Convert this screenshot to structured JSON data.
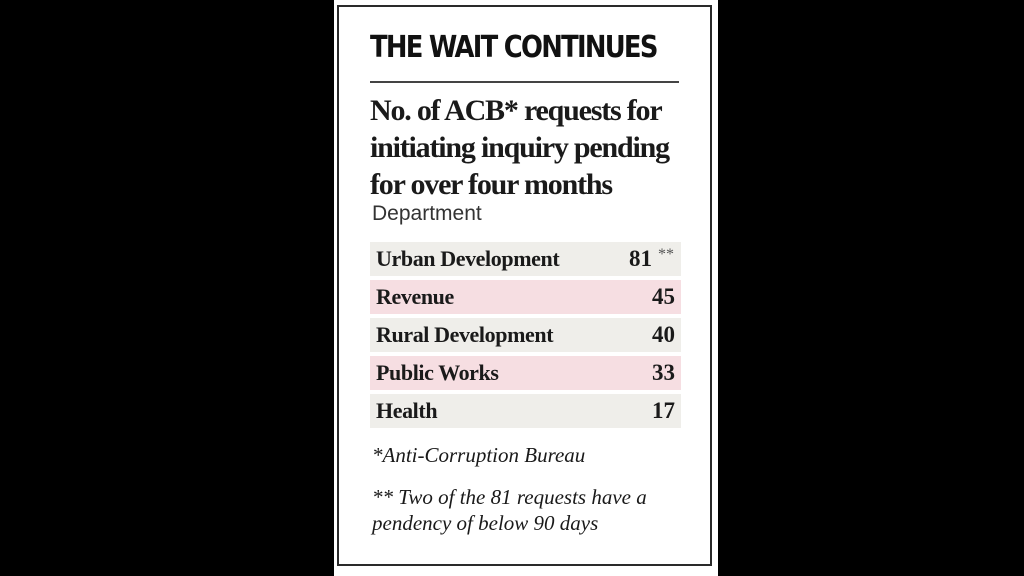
{
  "chart_data": {
    "type": "table",
    "title": "THE WAIT CONTINUES",
    "subtitle": "No. of ACB* requests for initiating inquiry pending for over four months",
    "column_header": "Department",
    "rows": [
      {
        "category": "Urban Development",
        "value": 81,
        "value_label": "81",
        "mark": "**",
        "color": "#efeeea"
      },
      {
        "category": "Revenue",
        "value": 45,
        "value_label": "45",
        "mark": "",
        "color": "#f6dee2"
      },
      {
        "category": "Rural Development",
        "value": 40,
        "value_label": "40",
        "mark": "",
        "color": "#efeeea"
      },
      {
        "category": "Public Works",
        "value": 33,
        "value_label": "33",
        "mark": "",
        "color": "#f6dee2"
      },
      {
        "category": "Health",
        "value": 17,
        "value_label": "17",
        "mark": "",
        "color": "#efeeea"
      }
    ],
    "footnotes": [
      "*Anti-Corruption Bureau",
      "** Two of the 81 requests have a pendency of below 90 days"
    ]
  }
}
